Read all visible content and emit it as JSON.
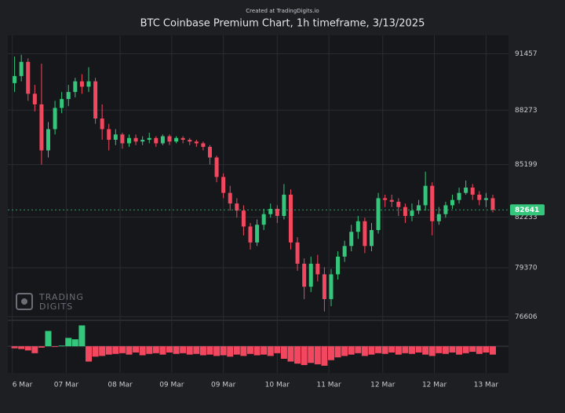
{
  "chart_data": {
    "type": "candlestick",
    "credit": "Created at TradingDigits.io",
    "title": "BTC Coinbase Premium Chart, 1h timeframe, 3/13/2025",
    "watermark": [
      "TRADING",
      "DIGITS"
    ],
    "x": [
      0,
      3,
      6,
      9,
      12,
      15,
      18,
      21,
      24,
      27,
      30,
      33,
      36,
      39,
      42,
      45,
      48,
      51,
      54,
      57,
      60,
      63,
      66,
      69,
      72,
      75,
      78,
      81,
      84,
      87,
      90,
      93,
      96,
      99,
      102,
      105,
      108,
      111,
      114,
      117,
      120,
      123,
      126,
      129,
      132,
      135,
      138,
      141,
      144,
      147,
      150,
      153,
      156,
      159,
      162,
      165,
      168,
      171,
      174,
      177,
      180,
      183,
      186,
      189,
      192,
      195,
      198,
      201,
      204,
      207,
      210,
      213
    ],
    "open": [
      89800,
      90200,
      91000,
      89200,
      88600,
      86000,
      87200,
      88400,
      88900,
      89300,
      89900,
      89600,
      89900,
      87800,
      87200,
      86600,
      86900,
      86400,
      86700,
      86500,
      86600,
      86700,
      86400,
      86800,
      86500,
      86700,
      86600,
      86500,
      86400,
      86200,
      85600,
      84500,
      83600,
      83000,
      82600,
      81700,
      80800,
      81800,
      82400,
      82700,
      82300,
      83500,
      80800,
      79600,
      78300,
      79600,
      79000,
      77600,
      79000,
      80000,
      80600,
      81400,
      82000,
      80600,
      81500,
      83300,
      83200,
      83100,
      82800,
      82300,
      82600,
      82900,
      84000,
      82000,
      82400,
      82900,
      83200,
      83600,
      83900,
      83500,
      83200,
      83300
    ],
    "high": [
      91300,
      91400,
      91200,
      89700,
      90900,
      87600,
      88800,
      89300,
      89700,
      90100,
      90300,
      90700,
      90100,
      88600,
      87500,
      87200,
      87000,
      86900,
      86900,
      86800,
      87000,
      86800,
      86900,
      86900,
      86800,
      86800,
      86700,
      86600,
      86500,
      86300,
      85700,
      84700,
      84000,
      83300,
      82900,
      81900,
      82100,
      82700,
      83000,
      82900,
      84100,
      83800,
      81100,
      79900,
      80000,
      80100,
      79400,
      79300,
      80300,
      80900,
      81800,
      82300,
      82200,
      81900,
      83600,
      83500,
      83500,
      83300,
      83000,
      83000,
      83200,
      84800,
      84200,
      82800,
      83100,
      83500,
      83900,
      84300,
      84100,
      83700,
      83600,
      83500
    ],
    "low": [
      89300,
      89900,
      88800,
      88200,
      85200,
      85600,
      86900,
      88100,
      88500,
      89000,
      89200,
      89300,
      87500,
      86600,
      86000,
      86300,
      86100,
      86200,
      86300,
      86300,
      86400,
      86200,
      86300,
      86300,
      86400,
      86400,
      86300,
      86200,
      86000,
      85200,
      84200,
      83300,
      82600,
      82200,
      81200,
      80400,
      80600,
      81500,
      82200,
      81900,
      82100,
      80400,
      79200,
      77600,
      78000,
      78600,
      76900,
      77200,
      78700,
      79700,
      80300,
      81000,
      80200,
      80300,
      81300,
      82800,
      82800,
      82300,
      81900,
      82000,
      82400,
      82600,
      81200,
      81800,
      82200,
      82700,
      83000,
      83500,
      83200,
      82900,
      82800,
      82500
    ],
    "close": [
      90200,
      91000,
      89200,
      88600,
      86000,
      87200,
      88400,
      88900,
      89300,
      89900,
      89600,
      89900,
      87800,
      87200,
      86600,
      86900,
      86400,
      86700,
      86500,
      86600,
      86700,
      86400,
      86800,
      86500,
      86700,
      86600,
      86500,
      86400,
      86200,
      85600,
      84500,
      83600,
      83000,
      82600,
      81700,
      80800,
      81800,
      82400,
      82700,
      82300,
      83500,
      80800,
      79600,
      78300,
      79600,
      79000,
      77600,
      79000,
      80000,
      80600,
      81400,
      82000,
      80600,
      81500,
      83300,
      83200,
      83100,
      82800,
      82300,
      82600,
      82900,
      84000,
      82000,
      82400,
      82900,
      83200,
      83600,
      83900,
      83500,
      83200,
      83300,
      82641
    ],
    "up_color": "#34c77b",
    "down_color": "#f2485f",
    "xlim": [
      -3,
      220
    ],
    "xticks": [
      {
        "value": -1,
        "label": "6 Mar"
      },
      {
        "value": 23,
        "label": "07 Mar"
      },
      {
        "value": 47,
        "label": "08 Mar"
      },
      {
        "value": 70,
        "label": "09 Mar"
      },
      {
        "value": 93,
        "label": "09 Mar"
      },
      {
        "value": 117,
        "label": "10 Mar"
      },
      {
        "value": 140,
        "label": "11 Mar"
      },
      {
        "value": 164,
        "label": "12 Mar"
      },
      {
        "value": 187,
        "label": "12 Mar"
      },
      {
        "value": 210,
        "label": "13 Mar"
      }
    ],
    "ylim": [
      76400,
      92500
    ],
    "yticks": [
      76606,
      79370,
      82233,
      85199,
      88273,
      91457
    ],
    "grid": true,
    "last_price": 82641,
    "premium": {
      "values": [
        -3,
        -4,
        -6,
        -10,
        -2,
        22,
        -1,
        1,
        12,
        10,
        30,
        -22,
        -15,
        -14,
        -12,
        -11,
        -10,
        -12,
        -9,
        -13,
        -11,
        -10,
        -12,
        -9,
        -11,
        -10,
        -12,
        -11,
        -13,
        -12,
        -14,
        -13,
        -15,
        -12,
        -14,
        -11,
        -13,
        -12,
        -14,
        -10,
        -18,
        -22,
        -25,
        -27,
        -24,
        -26,
        -28,
        -20,
        -16,
        -14,
        -12,
        -10,
        -14,
        -12,
        -10,
        -11,
        -9,
        -12,
        -10,
        -11,
        -9,
        -12,
        -14,
        -10,
        -11,
        -9,
        -12,
        -10,
        -8,
        -11,
        -9,
        -12
      ],
      "hlim": [
        -35,
        35
      ]
    }
  }
}
